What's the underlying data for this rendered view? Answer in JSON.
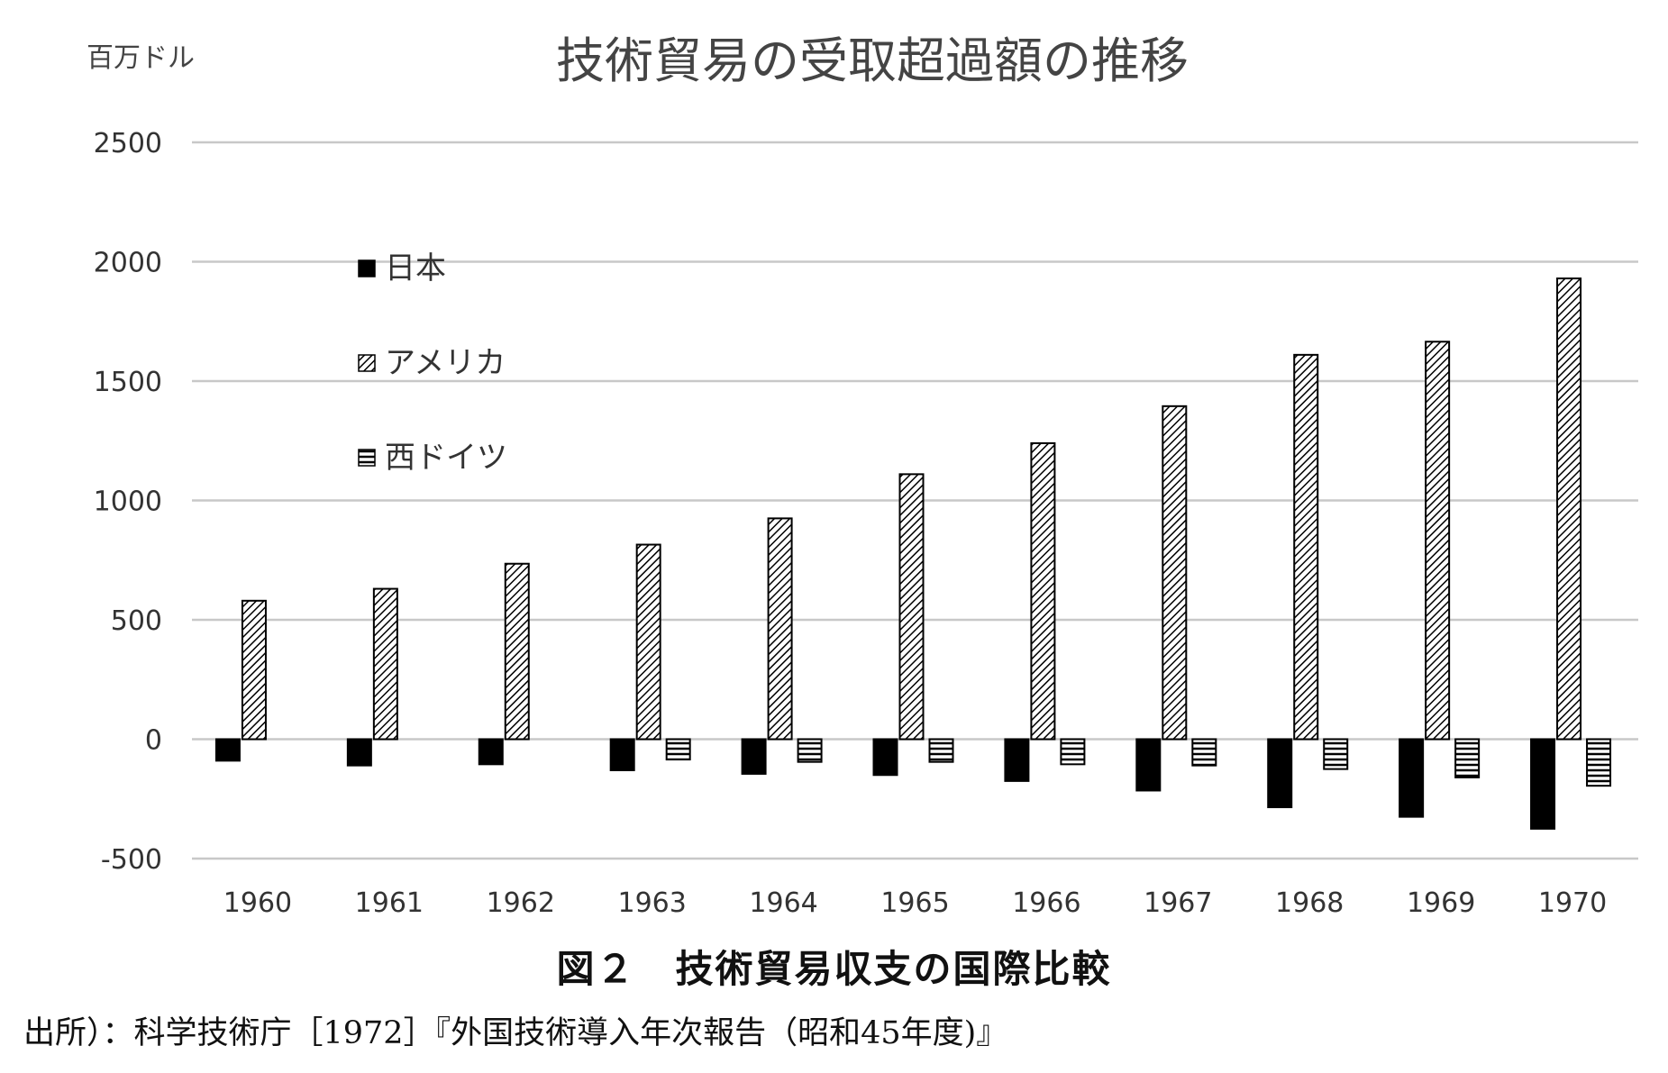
{
  "chart_data": {
    "type": "bar",
    "title": "技術貿易の受取超過額の推移",
    "unit_label": "百万ドル",
    "categories": [
      "1960",
      "1961",
      "1962",
      "1963",
      "1964",
      "1965",
      "1966",
      "1967",
      "1968",
      "1969",
      "1970"
    ],
    "yticks": [
      "2500",
      "2000",
      "1500",
      "1000",
      "500",
      "0",
      "-500"
    ],
    "ylim": [
      -500,
      2500
    ],
    "grid": true,
    "legend_placement": "upper-left inside plot",
    "series": [
      {
        "name": "日本",
        "pattern": "solid",
        "color": "#000000",
        "values": [
          -90,
          -110,
          -105,
          -130,
          -145,
          -150,
          -175,
          -215,
          -285,
          -325,
          -375
        ]
      },
      {
        "name": "アメリカ",
        "pattern": "diagonal",
        "color": "#000000",
        "values": [
          580,
          630,
          735,
          815,
          925,
          1110,
          1240,
          1395,
          1610,
          1665,
          1930
        ]
      },
      {
        "name": "西ドイツ",
        "pattern": "horizontal",
        "color": "#000000",
        "values": [
          null,
          null,
          null,
          -85,
          -95,
          -95,
          -105,
          -110,
          -125,
          -160,
          -195
        ]
      }
    ]
  },
  "caption": "図２　技術貿易収支の国際比較",
  "source": "出所）：科学技術庁［1972］『外国技術導入年次報告（昭和45年度)』"
}
